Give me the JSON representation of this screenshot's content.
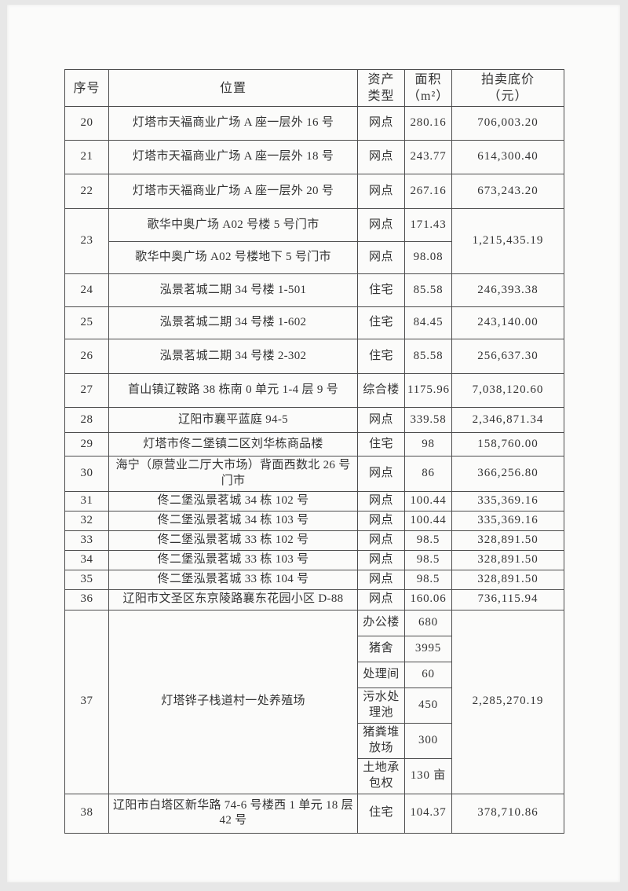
{
  "table": {
    "headers": {
      "no": "序号",
      "loc": "位置",
      "type": "资产\n类型",
      "area": "面积\n（m²）",
      "price": "拍卖底价\n（元）"
    },
    "rows": [
      {
        "no": "20",
        "loc": "灯塔市天福商业广场 A 座一层外 16 号",
        "type": "网点",
        "area": "280.16",
        "price": "706,003.20"
      },
      {
        "no": "21",
        "loc": "灯塔市天福商业广场 A 座一层外 18 号",
        "type": "网点",
        "area": "243.77",
        "price": "614,300.40"
      },
      {
        "no": "22",
        "loc": "灯塔市天福商业广场 A 座一层外 20 号",
        "type": "网点",
        "area": "267.16",
        "price": "673,243.20"
      },
      {
        "no": "23",
        "price": "1,215,435.19",
        "subs": [
          {
            "loc": "歌华中奥广场 A02 号楼 5 号门市",
            "type": "网点",
            "area": "171.43"
          },
          {
            "loc": "歌华中奥广场 A02 号楼地下 5 号门市",
            "type": "网点",
            "area": "98.08"
          }
        ]
      },
      {
        "no": "24",
        "loc": "泓景茗城二期 34 号楼 1-501",
        "type": "住宅",
        "area": "85.58",
        "price": "246,393.38"
      },
      {
        "no": "25",
        "loc": "泓景茗城二期 34 号楼 1-602",
        "type": "住宅",
        "area": "84.45",
        "price": "243,140.00"
      },
      {
        "no": "26",
        "loc": "泓景茗城二期 34 号楼 2-302",
        "type": "住宅",
        "area": "85.58",
        "price": "256,637.30"
      },
      {
        "no": "27",
        "loc": "首山镇辽鞍路 38 栋南 0 单元 1-4 层 9 号",
        "type": "综合楼",
        "area": "1175.96",
        "price": "7,038,120.60"
      },
      {
        "no": "28",
        "loc": "辽阳市襄平蓝庭 94-5",
        "type": "网点",
        "area": "339.58",
        "price": "2,346,871.34"
      },
      {
        "no": "29",
        "loc": "灯塔市佟二堡镇二区刘华栋商品楼",
        "type": "住宅",
        "area": "98",
        "price": "158,760.00"
      },
      {
        "no": "30",
        "loc": "海宁（原营业二厅大市场）背面西数北 26 号门市",
        "type": "网点",
        "area": "86",
        "price": "366,256.80"
      },
      {
        "no": "31",
        "loc": "佟二堡泓景茗城 34 栋 102 号",
        "type": "网点",
        "area": "100.44",
        "price": "335,369.16"
      },
      {
        "no": "32",
        "loc": "佟二堡泓景茗城 34 栋 103 号",
        "type": "网点",
        "area": "100.44",
        "price": "335,369.16"
      },
      {
        "no": "33",
        "loc": "佟二堡泓景茗城 33 栋 102 号",
        "type": "网点",
        "area": "98.5",
        "price": "328,891.50"
      },
      {
        "no": "34",
        "loc": "佟二堡泓景茗城 33 栋 103 号",
        "type": "网点",
        "area": "98.5",
        "price": "328,891.50"
      },
      {
        "no": "35",
        "loc": "佟二堡泓景茗城 33 栋 104 号",
        "type": "网点",
        "area": "98.5",
        "price": "328,891.50"
      },
      {
        "no": "36",
        "loc": "辽阳市文圣区东京陵路襄东花园小区 D-88",
        "type": "网点",
        "area": "160.06",
        "price": "736,115.94"
      },
      {
        "no": "37",
        "loc": "灯塔铧子栈道村一处养殖场",
        "price": "2,285,270.19",
        "subs": [
          {
            "type": "办公楼",
            "area": "680"
          },
          {
            "type": "猪舍",
            "area": "3995"
          },
          {
            "type": "处理间",
            "area": "60"
          },
          {
            "type": "污水处理池",
            "area": "450"
          },
          {
            "type": "猪粪堆放场",
            "area": "300"
          },
          {
            "type": "土地承包权",
            "area": "130 亩"
          }
        ]
      },
      {
        "no": "38",
        "loc": "辽阳市白塔区新华路 74-6 号楼西 1 单元 18 层 42 号",
        "type": "住宅",
        "area": "104.37",
        "price": "378,710.86"
      }
    ]
  }
}
